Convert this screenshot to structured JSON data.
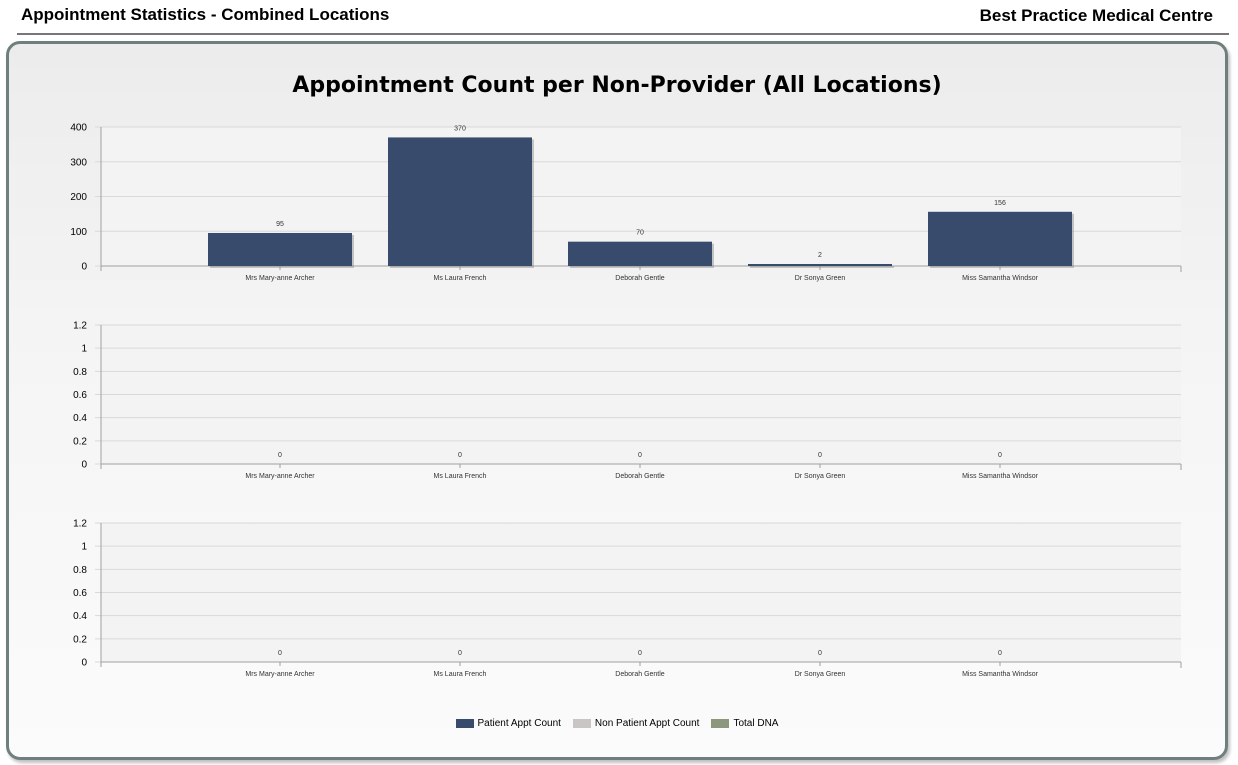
{
  "header": {
    "report_title": "Appointment Statistics - Combined Locations",
    "org_name": "Best Practice Medical Centre"
  },
  "colors": {
    "patient_appt": "#384b6c",
    "non_patient_appt": "#c9c5c5",
    "total_dna": "#8d977d"
  },
  "chart_data": {
    "type": "bar",
    "title": "Appointment Count per Non-Provider (All Locations)",
    "categories": [
      "Mrs Mary-anne Archer",
      "Ms Laura French",
      "Deborah Gentle",
      "Dr Sonya Green",
      "Miss Samantha Windsor"
    ],
    "legend_position": "bottom-center",
    "grid": true,
    "panels": [
      {
        "series": "Patient Appt Count",
        "values": [
          95,
          370,
          70,
          2,
          156
        ],
        "ylim": [
          0,
          400
        ],
        "yticks": [
          "0",
          "100",
          "200",
          "300",
          "400"
        ],
        "data_labels": [
          "95",
          "370",
          "70",
          "2",
          "156"
        ]
      },
      {
        "series": "Non Patient Appt Count",
        "values": [
          0,
          0,
          0,
          0,
          0
        ],
        "ylim": [
          0,
          1.2
        ],
        "yticks": [
          "0",
          "0.2",
          "0.4",
          "0.6",
          "0.8",
          "1",
          "1.2"
        ],
        "data_labels": [
          "0",
          "0",
          "0",
          "0",
          "0"
        ]
      },
      {
        "series": "Total DNA",
        "values": [
          0,
          0,
          0,
          0,
          0
        ],
        "ylim": [
          0,
          1.2
        ],
        "yticks": [
          "0",
          "0.2",
          "0.4",
          "0.6",
          "0.8",
          "1",
          "1.2"
        ],
        "data_labels": [
          "0",
          "0",
          "0",
          "0",
          "0"
        ]
      }
    ],
    "legend": [
      {
        "label": "Patient Appt Count",
        "color": "#384b6c"
      },
      {
        "label": "Non Patient Appt Count",
        "color": "#c9c5c5"
      },
      {
        "label": "Total DNA",
        "color": "#8d977d"
      }
    ]
  }
}
